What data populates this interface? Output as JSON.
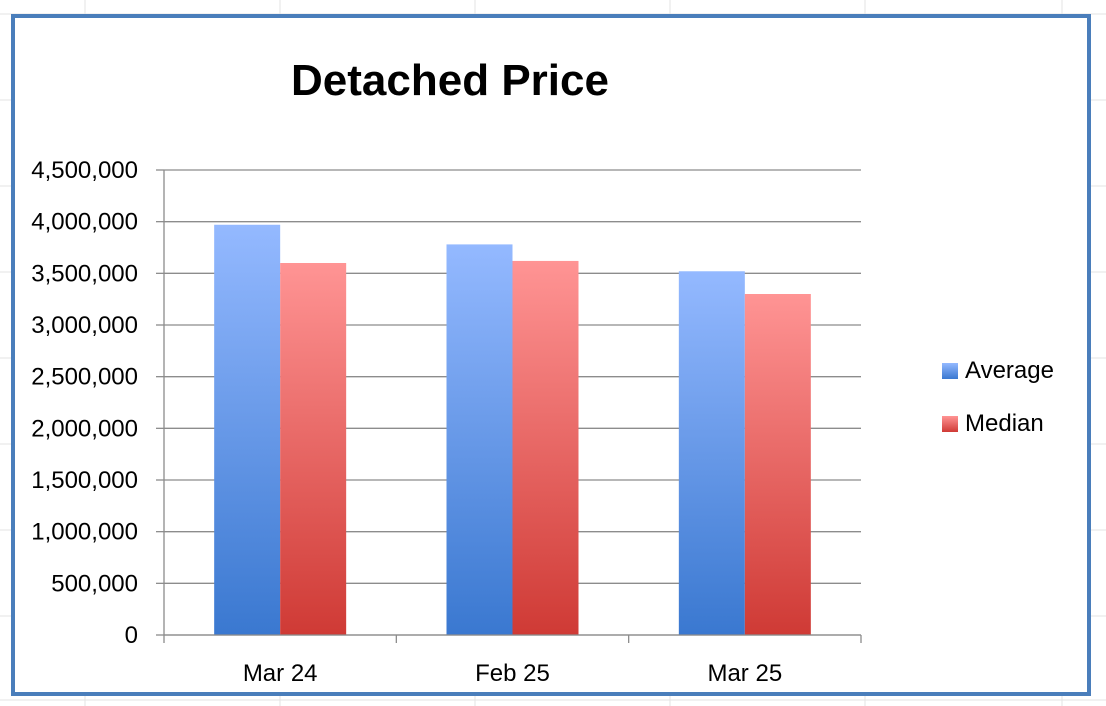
{
  "chart_data": {
    "type": "bar",
    "title": "Detached Price",
    "xlabel": "",
    "ylabel": "",
    "categories": [
      "Mar 24",
      "Feb  25",
      "Mar  25"
    ],
    "series": [
      {
        "name": "Average",
        "values": [
          3970000,
          3780000,
          3520000
        ],
        "color_top": "#94b9ff",
        "color_bottom": "#3a78d0"
      },
      {
        "name": "Median",
        "values": [
          3600000,
          3620000,
          3300000
        ],
        "color_top": "#ff9494",
        "color_bottom": "#cf3a35"
      }
    ],
    "ylim": [
      0,
      4500000
    ],
    "yticks": [
      0,
      500000,
      1000000,
      1500000,
      2000000,
      2500000,
      3000000,
      3500000,
      4000000,
      4500000
    ],
    "ytick_labels": [
      "0",
      "500,000",
      "1,000,000",
      "1,500,000",
      "2,000,000",
      "2,500,000",
      "3,000,000",
      "3,500,000",
      "4,000,000",
      "4,500,000"
    ],
    "grid": true,
    "legend_position": "right"
  },
  "frame_color": "#4a7ebb",
  "grid_color": "#8c8c8c"
}
